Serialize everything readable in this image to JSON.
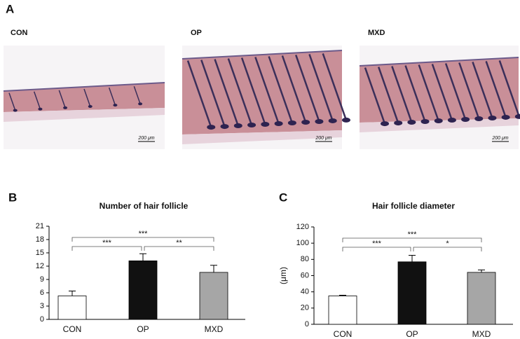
{
  "panel_a": {
    "label": "A",
    "images": [
      {
        "label": "CON",
        "scale": "200 μm"
      },
      {
        "label": "OP",
        "scale": "200 μm"
      },
      {
        "label": "MXD",
        "scale": "200 μm"
      }
    ]
  },
  "chart_data": [
    {
      "type": "bar",
      "panel_label": "B",
      "title": "Number of hair follicle",
      "categories": [
        "CON",
        "OP",
        "MXD"
      ],
      "values": [
        5.3,
        13.2,
        10.6
      ],
      "errors": [
        1.1,
        1.6,
        1.6
      ],
      "colors": [
        "#ffffff",
        "#111111",
        "#a6a6a6"
      ],
      "ylim": [
        0,
        21
      ],
      "yticks": [
        0,
        3,
        6,
        9,
        12,
        15,
        18,
        21
      ],
      "significance": [
        {
          "from": 0,
          "to": 1,
          "label": "***"
        },
        {
          "from": 1,
          "to": 2,
          "label": "**"
        },
        {
          "from": 0,
          "to": 2,
          "label": "***"
        }
      ]
    },
    {
      "type": "bar",
      "panel_label": "C",
      "title": "Hair follicle diameter",
      "ylabel": "(μm)",
      "categories": [
        "CON",
        "OP",
        "MXD"
      ],
      "values": [
        35,
        77,
        64
      ],
      "errors": [
        0.8,
        8,
        3
      ],
      "colors": [
        "#ffffff",
        "#111111",
        "#a6a6a6"
      ],
      "ylim": [
        0,
        120
      ],
      "yticks": [
        0,
        20,
        40,
        60,
        80,
        100,
        120
      ],
      "significance": [
        {
          "from": 0,
          "to": 1,
          "label": "***"
        },
        {
          "from": 1,
          "to": 2,
          "label": "*"
        },
        {
          "from": 0,
          "to": 2,
          "label": "***"
        }
      ]
    }
  ]
}
